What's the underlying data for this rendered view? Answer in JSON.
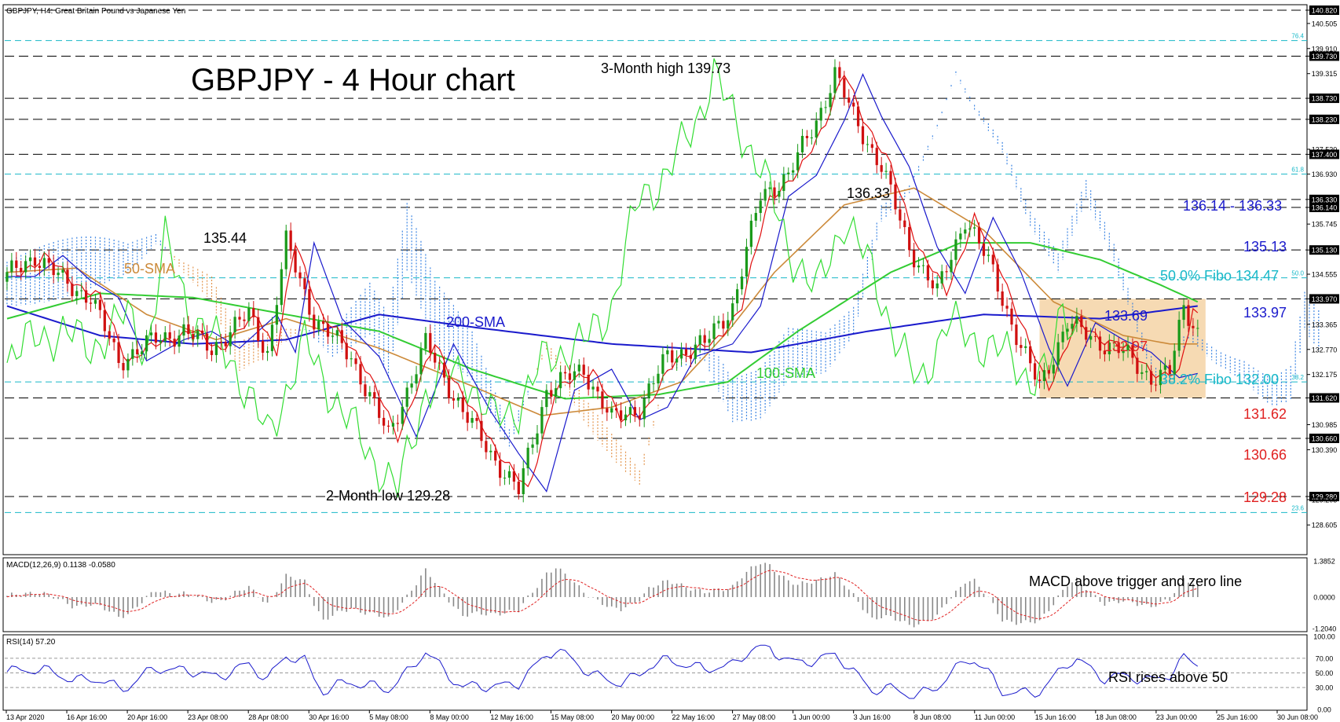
{
  "header": {
    "symbol_label": "GBPJPY, H4:  Great Britain Pound vs Japanese Yen",
    "title": "GBPJPY - 4 Hour chart"
  },
  "colors": {
    "bull": "#1a9a1a",
    "bear": "#d01010",
    "sma50": "#cc8a3a",
    "sma100": "#33cc33",
    "sma200": "#1a1acc",
    "tenkan": "#e01010",
    "kijun": "#1a1acc",
    "chikou": "#33dd33",
    "cloud_bull": "#2a7ae0",
    "cloud_bear": "#e08a3a",
    "fibo": "#17b8c8",
    "range_box": "#f5d3a6",
    "label_red": "#e02020",
    "label_blue": "#1a1acc",
    "label_teal": "#17b8c8",
    "label_green": "#33cc33",
    "label_orange": "#cc8a3a"
  },
  "chart_data": [
    {
      "type": "candlestick",
      "panel": "price",
      "ylim": [
        127.9,
        140.95
      ],
      "y_ticks": [
        "140.820",
        "140.505",
        "139.910",
        "139.730",
        "139.315",
        "138.730",
        "138.230",
        "137.520",
        "137.400",
        "136.930",
        "136.330",
        "136.140",
        "135.745",
        "135.130",
        "134.555",
        "133.970",
        "133.365",
        "132.770",
        "132.175",
        "131.620",
        "130.985",
        "130.660",
        "130.390",
        "129.280",
        "129.205",
        "128.605"
      ],
      "y_tick_values": [
        140.82,
        140.505,
        139.91,
        139.73,
        139.315,
        138.73,
        138.23,
        137.52,
        137.4,
        136.93,
        136.33,
        136.14,
        135.745,
        135.13,
        134.555,
        133.97,
        133.365,
        132.77,
        132.175,
        131.62,
        130.985,
        130.66,
        130.39,
        129.28,
        129.205,
        128.605
      ],
      "highlighted_ticks": [
        "140.820",
        "139.730",
        "138.730",
        "138.230",
        "137.400",
        "136.330",
        "136.140",
        "135.130",
        "133.970",
        "131.620",
        "130.660",
        "129.280"
      ],
      "x_ticks": [
        "13 Apr 2020",
        "16 Apr 16:00",
        "20 Apr 16:00",
        "23 Apr 08:00",
        "28 Apr 08:00",
        "30 Apr 16:00",
        "5 May 08:00",
        "8 May 00:00",
        "12 May 16:00",
        "15 May 08:00",
        "20 May 00:00",
        "22 May 16:00",
        "27 May 08:00",
        "1 Jun 00:00",
        "3 Jun 16:00",
        "8 Jun 08:00",
        "11 Jun 00:00",
        "15 Jun 16:00",
        "18 Jun 08:00",
        "23 Jun 00:00",
        "25 Jun 16:00",
        "30 Jun 08:00"
      ],
      "key_points": [
        {
          "bar": 0,
          "price": 134.5
        },
        {
          "bar": 6,
          "price": 135.0
        },
        {
          "bar": 12,
          "price": 134.4
        },
        {
          "bar": 18,
          "price": 134.0
        },
        {
          "bar": 24,
          "price": 132.5
        },
        {
          "bar": 32,
          "price": 133.0
        },
        {
          "bar": 38,
          "price": 133.2
        },
        {
          "bar": 44,
          "price": 132.8
        },
        {
          "bar": 52,
          "price": 133.6
        },
        {
          "bar": 56,
          "price": 132.7
        },
        {
          "bar": 60,
          "price": 135.3
        },
        {
          "bar": 66,
          "price": 133.5
        },
        {
          "bar": 74,
          "price": 132.6
        },
        {
          "bar": 82,
          "price": 130.7
        },
        {
          "bar": 90,
          "price": 132.9
        },
        {
          "bar": 98,
          "price": 131.3
        },
        {
          "bar": 104,
          "price": 130.3
        },
        {
          "bar": 110,
          "price": 129.4
        },
        {
          "bar": 116,
          "price": 131.8
        },
        {
          "bar": 124,
          "price": 132.3
        },
        {
          "bar": 130,
          "price": 131.1
        },
        {
          "bar": 136,
          "price": 131.4
        },
        {
          "bar": 142,
          "price": 132.6
        },
        {
          "bar": 150,
          "price": 132.9
        },
        {
          "bar": 156,
          "price": 133.8
        },
        {
          "bar": 162,
          "price": 136.4
        },
        {
          "bar": 168,
          "price": 136.9
        },
        {
          "bar": 174,
          "price": 138.2
        },
        {
          "bar": 178,
          "price": 139.3
        },
        {
          "bar": 182,
          "price": 138.3
        },
        {
          "bar": 188,
          "price": 137.1
        },
        {
          "bar": 194,
          "price": 135.2
        },
        {
          "bar": 200,
          "price": 134.1
        },
        {
          "bar": 206,
          "price": 135.9
        },
        {
          "bar": 212,
          "price": 134.6
        },
        {
          "bar": 218,
          "price": 132.8
        },
        {
          "bar": 222,
          "price": 131.9
        },
        {
          "bar": 228,
          "price": 133.4
        },
        {
          "bar": 234,
          "price": 133.0
        },
        {
          "bar": 240,
          "price": 132.7
        },
        {
          "bar": 246,
          "price": 132.1
        },
        {
          "bar": 250,
          "price": 132.2
        },
        {
          "bar": 253,
          "price": 133.8
        },
        {
          "bar": 256,
          "price": 133.2
        }
      ],
      "sma50": [
        [
          0,
          134.6
        ],
        [
          15,
          134.7
        ],
        [
          30,
          133.6
        ],
        [
          45,
          133.0
        ],
        [
          60,
          133.5
        ],
        [
          80,
          132.8
        ],
        [
          100,
          131.9
        ],
        [
          115,
          131.2
        ],
        [
          130,
          131.4
        ],
        [
          145,
          132.0
        ],
        [
          155,
          133.2
        ],
        [
          165,
          134.6
        ],
        [
          180,
          136.2
        ],
        [
          195,
          136.6
        ],
        [
          210,
          135.6
        ],
        [
          225,
          133.9
        ],
        [
          240,
          133.1
        ],
        [
          250,
          132.9
        ],
        [
          256,
          132.9
        ]
      ],
      "sma100": [
        [
          0,
          133.5
        ],
        [
          20,
          134.1
        ],
        [
          40,
          134.0
        ],
        [
          60,
          133.6
        ],
        [
          80,
          133.2
        ],
        [
          100,
          132.3
        ],
        [
          120,
          131.6
        ],
        [
          140,
          131.7
        ],
        [
          155,
          132.0
        ],
        [
          170,
          133.2
        ],
        [
          190,
          134.6
        ],
        [
          205,
          135.3
        ],
        [
          220,
          135.3
        ],
        [
          235,
          134.9
        ],
        [
          248,
          134.3
        ],
        [
          256,
          133.9
        ]
      ],
      "sma200": [
        [
          0,
          133.8
        ],
        [
          20,
          133.1
        ],
        [
          40,
          132.9
        ],
        [
          60,
          133.0
        ],
        [
          80,
          133.6
        ],
        [
          100,
          133.3
        ],
        [
          130,
          132.9
        ],
        [
          160,
          132.7
        ],
        [
          185,
          133.2
        ],
        [
          210,
          133.6
        ],
        [
          235,
          133.5
        ],
        [
          256,
          133.8
        ]
      ],
      "fibo_levels": [
        {
          "label": "76.4",
          "price": 140.1
        },
        {
          "label": "61.8",
          "price": 136.93
        },
        {
          "label": "50.0",
          "price": 134.47
        },
        {
          "label": "38.2",
          "price": 132.0
        },
        {
          "label": "23.6",
          "price": 128.9
        }
      ],
      "dashed_levels": [
        140.82,
        139.73,
        138.73,
        138.23,
        137.4,
        136.33,
        136.14,
        135.13,
        133.97,
        131.62,
        130.66,
        129.28
      ],
      "range_box": {
        "from_bar": 222,
        "to_bar": 256,
        "top": 133.97,
        "bottom": 131.62
      },
      "annotations": {
        "high": "3-Month high 139.73",
        "low": "2-Month low 129.28",
        "peak_135_44": "135.44",
        "peak_136_33": "136.33",
        "sma50": "50-SMA",
        "sma100": "100-SMA",
        "sma200": "200-SMA",
        "r1": "136.14 - 136.33",
        "r2": "135.13",
        "fibo50": "50.0% Fibo 134.47",
        "r3": "133.97",
        "cur_blue": "133.69",
        "cur_red": "132.97",
        "fibo38": "38.2% Fibo 132.00",
        "s1": "131.62",
        "s2": "130.66",
        "s3": "129.28"
      }
    },
    {
      "type": "histogram",
      "panel": "macd",
      "label": "MACD(12,26,9) 0.1138 -0.0580",
      "y_ticks": [
        "1.3852",
        "0.0000",
        "-1.2040"
      ],
      "ylim": [
        -1.3,
        1.45
      ],
      "annotation": "MACD above trigger and zero line"
    },
    {
      "type": "line",
      "panel": "rsi",
      "label": "RSI(14) 57.20",
      "y_ticks": [
        "100.00",
        "70.00",
        "50.00",
        "30.00",
        "0.00"
      ],
      "ylim": [
        0,
        100
      ],
      "annotation": "RSI rises above 50"
    }
  ]
}
